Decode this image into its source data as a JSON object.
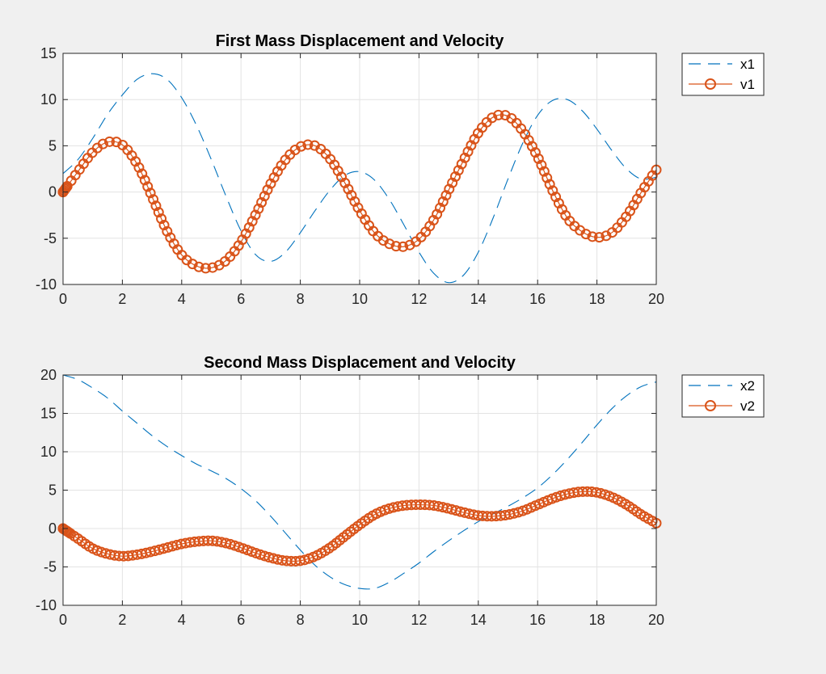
{
  "figure": {
    "background": "#f0f0f0"
  },
  "chart_data": [
    {
      "type": "line",
      "title": "First Mass Displacement and Velocity",
      "xlabel": "",
      "ylabel": "",
      "xlim": [
        0,
        20
      ],
      "ylim": [
        -10,
        15
      ],
      "xticks": [
        "0",
        "2",
        "4",
        "6",
        "8",
        "10",
        "12",
        "14",
        "16",
        "18",
        "20"
      ],
      "yticks": [
        "-10",
        "-5",
        "0",
        "5",
        "10",
        "15"
      ],
      "grid": true,
      "legend_position": "outside top-right",
      "series": [
        {
          "name": "x1",
          "style": "dashed",
          "color": "#0072bd",
          "points": [
            [
              0,
              2
            ],
            [
              0.5,
              3.5
            ],
            [
              1,
              5.8
            ],
            [
              1.5,
              8.4
            ],
            [
              2,
              10.5
            ],
            [
              2.5,
              12.2
            ],
            [
              3,
              12.8
            ],
            [
              3.5,
              12.2
            ],
            [
              4,
              10.2
            ],
            [
              4.5,
              7.2
            ],
            [
              5,
              3.5
            ],
            [
              5.5,
              -0.5
            ],
            [
              6,
              -4.2
            ],
            [
              6.5,
              -6.8
            ],
            [
              7,
              -7.5
            ],
            [
              7.5,
              -6.5
            ],
            [
              8,
              -4.4
            ],
            [
              8.5,
              -2
            ],
            [
              9,
              0.2
            ],
            [
              9.5,
              1.8
            ],
            [
              10,
              2.2
            ],
            [
              10.5,
              1.3
            ],
            [
              11,
              -0.8
            ],
            [
              11.5,
              -3.6
            ],
            [
              12,
              -6.5
            ],
            [
              12.5,
              -8.8
            ],
            [
              13,
              -9.8
            ],
            [
              13.5,
              -9
            ],
            [
              14,
              -6.5
            ],
            [
              14.5,
              -2.8
            ],
            [
              15,
              1.4
            ],
            [
              15.5,
              5.3
            ],
            [
              16,
              8.3
            ],
            [
              16.5,
              9.9
            ],
            [
              17,
              10
            ],
            [
              17.5,
              8.8
            ],
            [
              18,
              6.8
            ],
            [
              18.5,
              4.5
            ],
            [
              19,
              2.5
            ],
            [
              19.5,
              1.4
            ],
            [
              20,
              1.6
            ]
          ]
        },
        {
          "name": "v1",
          "style": "solid-circle-markers",
          "color": "#d95319",
          "points": [
            [
              0,
              0
            ],
            [
              0.5,
              2.2
            ],
            [
              1,
              4.3
            ],
            [
              1.5,
              5.4
            ],
            [
              2,
              5.1
            ],
            [
              2.5,
              3
            ],
            [
              3,
              -0.5
            ],
            [
              3.5,
              -4.2
            ],
            [
              4,
              -6.8
            ],
            [
              4.5,
              -8
            ],
            [
              5,
              -8.2
            ],
            [
              5.5,
              -7.4
            ],
            [
              6,
              -5.4
            ],
            [
              6.5,
              -2.4
            ],
            [
              7,
              0.9
            ],
            [
              7.5,
              3.5
            ],
            [
              8,
              4.9
            ],
            [
              8.5,
              5
            ],
            [
              9,
              3.6
            ],
            [
              9.5,
              1
            ],
            [
              10,
              -2
            ],
            [
              10.5,
              -4.4
            ],
            [
              11,
              -5.6
            ],
            [
              11.5,
              -5.9
            ],
            [
              12,
              -5.1
            ],
            [
              12.5,
              -3
            ],
            [
              13,
              0.2
            ],
            [
              13.5,
              3.4
            ],
            [
              14,
              6.4
            ],
            [
              14.5,
              8.1
            ],
            [
              15,
              8.2
            ],
            [
              15.5,
              6.6
            ],
            [
              16,
              3.8
            ],
            [
              16.5,
              0.2
            ],
            [
              17,
              -2.8
            ],
            [
              17.5,
              -4.3
            ],
            [
              18,
              -4.9
            ],
            [
              18.5,
              -4.4
            ],
            [
              19,
              -2.6
            ],
            [
              19.5,
              0
            ],
            [
              20,
              2.4
            ]
          ]
        }
      ]
    },
    {
      "type": "line",
      "title": "Second Mass Displacement and Velocity",
      "xlabel": "",
      "ylabel": "",
      "xlim": [
        0,
        20
      ],
      "ylim": [
        -10,
        20
      ],
      "xticks": [
        "0",
        "2",
        "4",
        "6",
        "8",
        "10",
        "12",
        "14",
        "16",
        "18",
        "20"
      ],
      "yticks": [
        "-10",
        "-5",
        "0",
        "5",
        "10",
        "15",
        "20"
      ],
      "grid": true,
      "legend_position": "outside top-right",
      "series": [
        {
          "name": "x2",
          "style": "dashed",
          "color": "#0072bd",
          "points": [
            [
              0,
              20
            ],
            [
              0.5,
              19.4
            ],
            [
              1,
              18.3
            ],
            [
              1.5,
              17
            ],
            [
              2,
              15.3
            ],
            [
              2.5,
              13.7
            ],
            [
              3,
              12.1
            ],
            [
              3.5,
              10.7
            ],
            [
              4,
              9.5
            ],
            [
              4.5,
              8.4
            ],
            [
              5,
              7.5
            ],
            [
              5.5,
              6.5
            ],
            [
              6,
              5.2
            ],
            [
              6.5,
              3.6
            ],
            [
              7,
              1.6
            ],
            [
              7.5,
              -0.6
            ],
            [
              8,
              -2.8
            ],
            [
              8.5,
              -4.8
            ],
            [
              9,
              -6.3
            ],
            [
              9.5,
              -7.3
            ],
            [
              10,
              -7.8
            ],
            [
              10.5,
              -7.8
            ],
            [
              11,
              -7
            ],
            [
              11.5,
              -5.8
            ],
            [
              12,
              -4.5
            ],
            [
              12.5,
              -3
            ],
            [
              13,
              -1.6
            ],
            [
              13.5,
              -0.3
            ],
            [
              14,
              0.9
            ],
            [
              14.5,
              1.9
            ],
            [
              15,
              2.9
            ],
            [
              15.5,
              4
            ],
            [
              16,
              5.3
            ],
            [
              16.5,
              7
            ],
            [
              17,
              9
            ],
            [
              17.5,
              11.2
            ],
            [
              18,
              13.5
            ],
            [
              18.5,
              15.6
            ],
            [
              19,
              17.3
            ],
            [
              19.5,
              18.5
            ],
            [
              20,
              19.1
            ]
          ]
        },
        {
          "name": "v2",
          "style": "solid-circle-markers",
          "color": "#d95319",
          "points": [
            [
              0,
              0
            ],
            [
              0.5,
              -1.3
            ],
            [
              1,
              -2.6
            ],
            [
              1.5,
              -3.3
            ],
            [
              2,
              -3.6
            ],
            [
              2.5,
              -3.4
            ],
            [
              3,
              -3
            ],
            [
              3.5,
              -2.5
            ],
            [
              4,
              -2
            ],
            [
              4.5,
              -1.7
            ],
            [
              5,
              -1.6
            ],
            [
              5.5,
              -1.9
            ],
            [
              6,
              -2.5
            ],
            [
              6.5,
              -3.2
            ],
            [
              7,
              -3.8
            ],
            [
              7.5,
              -4.2
            ],
            [
              8,
              -4.2
            ],
            [
              8.5,
              -3.6
            ],
            [
              9,
              -2.5
            ],
            [
              9.5,
              -1
            ],
            [
              10,
              0.5
            ],
            [
              10.5,
              1.8
            ],
            [
              11,
              2.6
            ],
            [
              11.5,
              3
            ],
            [
              12,
              3.1
            ],
            [
              12.5,
              3
            ],
            [
              13,
              2.6
            ],
            [
              13.5,
              2.1
            ],
            [
              14,
              1.7
            ],
            [
              14.5,
              1.6
            ],
            [
              15,
              1.8
            ],
            [
              15.5,
              2.3
            ],
            [
              16,
              3.1
            ],
            [
              16.5,
              3.9
            ],
            [
              17,
              4.5
            ],
            [
              17.5,
              4.8
            ],
            [
              18,
              4.7
            ],
            [
              18.5,
              4.1
            ],
            [
              19,
              3.1
            ],
            [
              19.5,
              1.8
            ],
            [
              20,
              0.7
            ]
          ]
        }
      ]
    }
  ]
}
